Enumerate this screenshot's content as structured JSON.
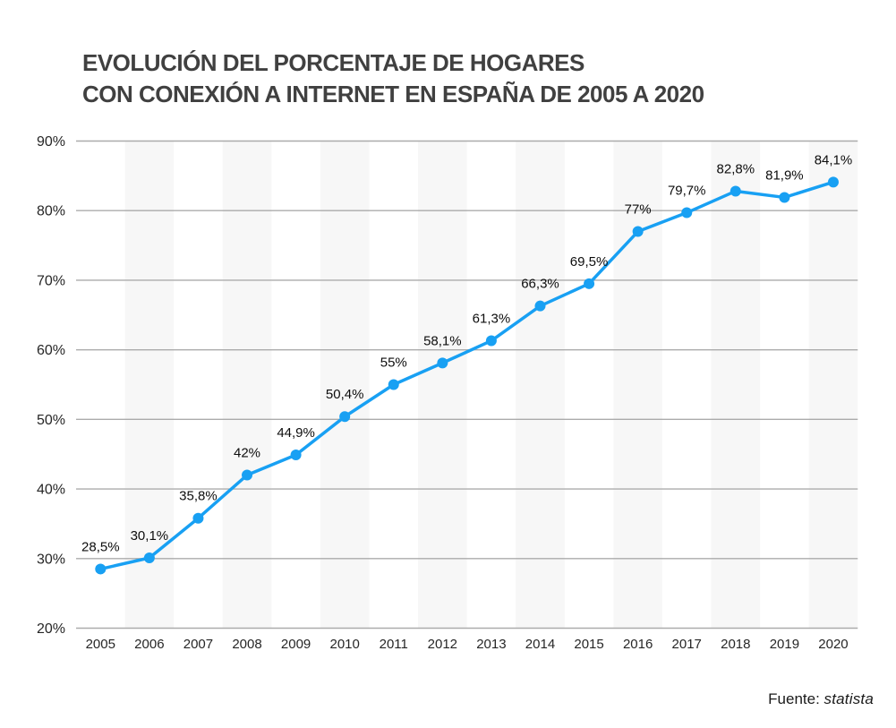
{
  "title": {
    "line1": "EVOLUCIÓN DEL PORCENTAJE DE HOGARES",
    "line2": "CON CONEXIÓN A INTERNET EN ESPAÑA DE 2005 A 2020"
  },
  "source": {
    "prefix": "Fuente: ",
    "brand": "statista"
  },
  "colors": {
    "line": "#18a0f3",
    "marker": "#18a0f3",
    "grid": "#ababab",
    "stripe": "#f7f7f7",
    "title_text": "#404040",
    "data_label_text": "#0d0d0d",
    "axis_text": "#262626"
  },
  "chart_data": {
    "type": "line",
    "title": "EVOLUCIÓN DEL PORCENTAJE DE HOGARES CON CONEXIÓN A INTERNET EN ESPAÑA DE 2005 A 2020",
    "categories": [
      "2005",
      "2006",
      "2007",
      "2008",
      "2009",
      "2010",
      "2011",
      "2012",
      "2013",
      "2014",
      "2015",
      "2016",
      "2017",
      "2018",
      "2019",
      "2020"
    ],
    "values": [
      28.5,
      30.1,
      35.8,
      42,
      44.9,
      50.4,
      55,
      58.1,
      61.3,
      66.3,
      69.5,
      77,
      79.7,
      82.8,
      81.9,
      84.1
    ],
    "point_labels": [
      "28,5%",
      "30,1%",
      "35,8%",
      "42%",
      "44,9%",
      "50,4%",
      "55%",
      "58,1%",
      "61,3%",
      "66,3%",
      "69,5%",
      "77%",
      "79,7%",
      "82,8%",
      "81,9%",
      "84,1%"
    ],
    "xlabel": "",
    "ylabel": "",
    "ylim": [
      20,
      90
    ],
    "yticks": [
      90,
      80,
      70,
      60,
      50,
      40,
      30,
      20
    ],
    "ytick_labels": [
      "90%",
      "80%",
      "70%",
      "60%",
      "50%",
      "40%",
      "30%",
      "20%"
    ],
    "grid": "horizontal gridlines on, alternating vertical column stripes starting at 2006",
    "legend": "none",
    "marker": "filled circle",
    "data_labels_position": "above points"
  }
}
